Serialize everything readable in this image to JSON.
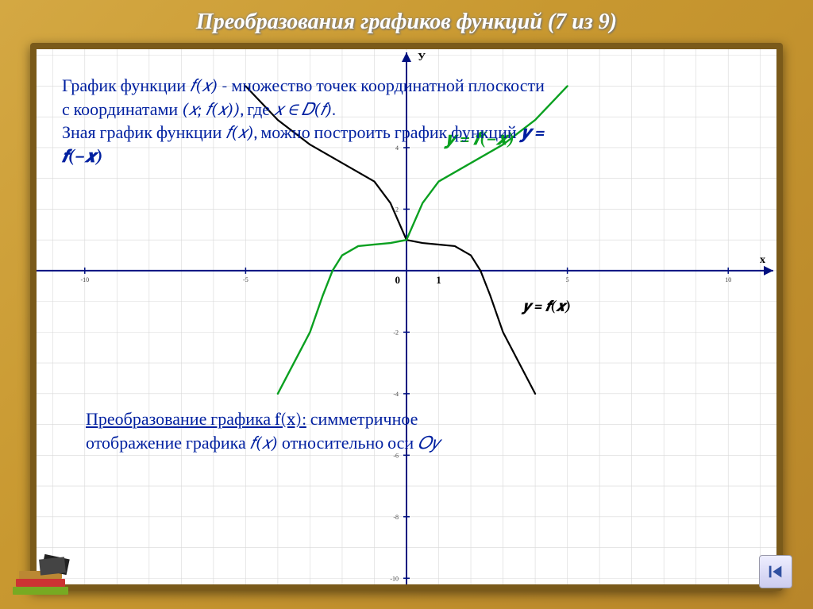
{
  "title": "Преобразования графиков функций (7 из 9)",
  "board": {
    "background": "#ffffff",
    "frame_color": "#7a5a1a"
  },
  "intro": {
    "line1_a": "График функции ",
    "line1_b": "𝑓(𝑥)",
    "line1_c": "  - множество точек координатной плоскости",
    "line2_a": "с координатами ",
    "line2_b": "(𝑥; 𝑓(𝑥))",
    "line2_c": ", где ",
    "line2_d": "𝑥 ∈ 𝐷(𝑓)",
    "line2_e": ".",
    "line3_a": "Зная график функции ",
    "line3_b": "𝑓(𝑥)",
    "line3_c": ", можно построить график функций ",
    "line3_d": "𝒚 =",
    "line4": "𝒇(−𝒙)",
    "fontsize": 22,
    "color": "#0020a0"
  },
  "chart": {
    "type": "line",
    "xlim": [
      -11.5,
      11.5
    ],
    "ylim": [
      -10.2,
      7.2
    ],
    "xtick_major": [
      -10,
      -5,
      0,
      5,
      10
    ],
    "ytick_major": [
      -10,
      -8,
      -6,
      -4,
      -2,
      2,
      4
    ],
    "x_axis_label": "x",
    "y_axis_label": "У",
    "origin_label": "0",
    "unit_label": "1",
    "grid_color": "#d8d8d8",
    "axis_color": "#001080",
    "axis_width": 2,
    "tick_fontsize": 8,
    "axis_label_fontsize": 14,
    "series": [
      {
        "name": "f(x)",
        "color": "#000000",
        "width": 2.2,
        "points": [
          [
            -5,
            6
          ],
          [
            -4,
            4.9
          ],
          [
            -3,
            4.1
          ],
          [
            -2,
            3.5
          ],
          [
            -1,
            2.9
          ],
          [
            -0.5,
            2.2
          ],
          [
            0,
            1
          ],
          [
            0.5,
            0.9
          ],
          [
            1,
            0.85
          ],
          [
            1.5,
            0.8
          ],
          [
            2,
            0.5
          ],
          [
            2.3,
            0
          ],
          [
            2.6,
            -0.8
          ],
          [
            3,
            -2
          ],
          [
            3.5,
            -3
          ],
          [
            4,
            -4
          ]
        ]
      },
      {
        "name": "f(-x)",
        "color": "#0aa020",
        "width": 2.4,
        "points": [
          [
            5,
            6
          ],
          [
            4,
            4.9
          ],
          [
            3,
            4.1
          ],
          [
            2,
            3.5
          ],
          [
            1,
            2.9
          ],
          [
            0.5,
            2.2
          ],
          [
            0,
            1
          ],
          [
            -0.5,
            0.9
          ],
          [
            -1,
            0.85
          ],
          [
            -1.5,
            0.8
          ],
          [
            -2,
            0.5
          ],
          [
            -2.3,
            0
          ],
          [
            -2.6,
            -0.8
          ],
          [
            -3,
            -2
          ],
          [
            -3.5,
            -3
          ],
          [
            -4,
            -4
          ]
        ]
      }
    ],
    "curve_labels": [
      {
        "text": "𝒚 = 𝒇(−𝒙)",
        "x": 1.2,
        "y": 4.1,
        "color": "#0aa020",
        "fontsize": 22,
        "bold": true,
        "italic": true
      },
      {
        "text": "𝒚 = 𝒇(𝒙)",
        "x": 3.6,
        "y": -1.3,
        "color": "#000000",
        "fontsize": 18,
        "bold": true,
        "italic": true
      }
    ]
  },
  "conclusion": {
    "line1_a": "Преобразование графика f(x):",
    "line1_b": " симметричное",
    "line2_a": "отображение графика ",
    "line2_b": "𝑓(𝑥)",
    "line2_c": " относительно оси ",
    "line2_d": "𝑂𝑦",
    "fontsize": 22,
    "color": "#0020a0"
  },
  "nav": {
    "icon": "skip-back"
  }
}
